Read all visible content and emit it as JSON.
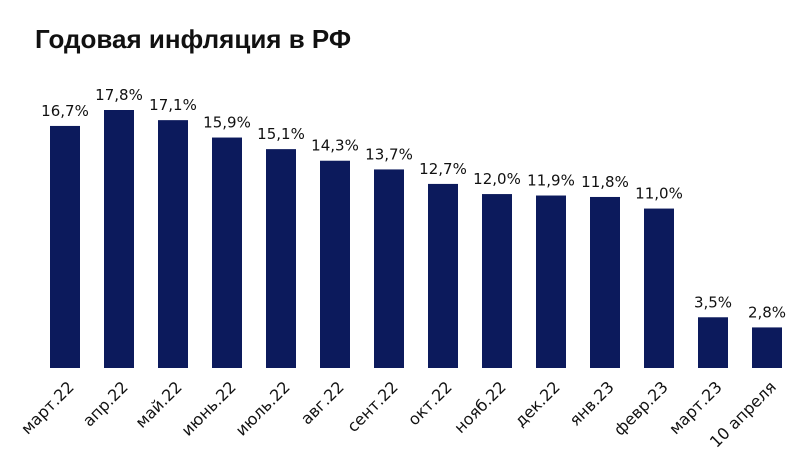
{
  "chart_data": {
    "type": "bar",
    "title": "Годовая инфляция в РФ",
    "categories": [
      "март.22",
      "апр.22",
      "май.22",
      "июнь.22",
      "июль.22",
      "авг.22",
      "сент.22",
      "окт.22",
      "нояб.22",
      "дек.22",
      "янв.23",
      "февр.23",
      "март.23",
      "10 апреля"
    ],
    "values": [
      16.7,
      17.8,
      17.1,
      15.9,
      15.1,
      14.3,
      13.7,
      12.7,
      12.0,
      11.9,
      11.8,
      11.0,
      3.5,
      2.8
    ],
    "value_labels": [
      "16,7%",
      "17,8%",
      "17,1%",
      "15,9%",
      "15,1%",
      "14,3%",
      "13,7%",
      "12,7%",
      "12,0%",
      "11,9%",
      "11,8%",
      "11,0%",
      "3,5%",
      "2,8%"
    ],
    "color": "#0c1a5c"
  }
}
